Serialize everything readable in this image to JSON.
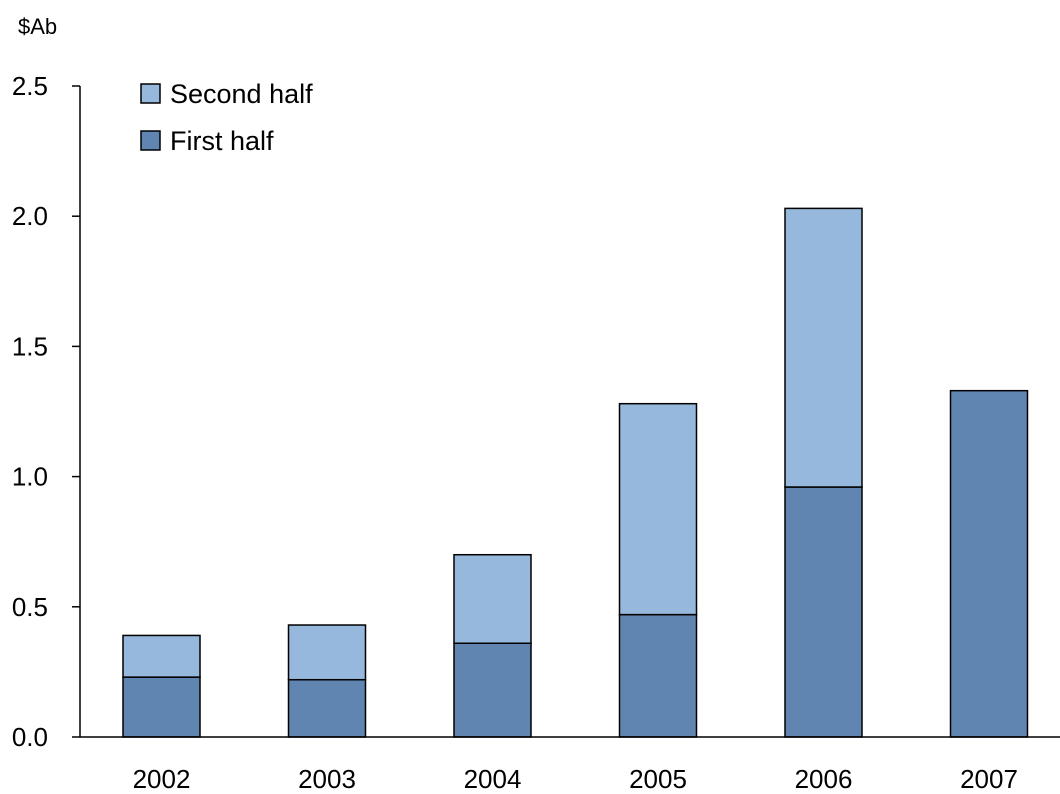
{
  "chart_data": {
    "type": "bar",
    "stacked": true,
    "unit_label": "$Ab",
    "categories": [
      "2002",
      "2003",
      "2004",
      "2005",
      "2006",
      "2007"
    ],
    "series": [
      {
        "name": "First half",
        "color": "#6185b1",
        "values": [
          0.23,
          0.22,
          0.36,
          0.47,
          0.96,
          1.33
        ]
      },
      {
        "name": "Second half",
        "color": "#95b8dc",
        "values": [
          0.16,
          0.21,
          0.34,
          0.81,
          1.07,
          0
        ]
      }
    ],
    "legend_order": [
      "Second half",
      "First half"
    ],
    "ylim": [
      0,
      2.5
    ],
    "yticks": [
      "0.0",
      "0.5",
      "1.0",
      "1.5",
      "2.0",
      "2.5"
    ],
    "xlabel": "",
    "ylabel": "",
    "grid": false,
    "legend_position": "top-left"
  }
}
